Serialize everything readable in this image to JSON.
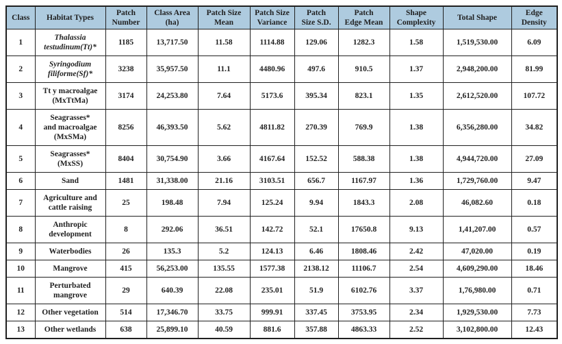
{
  "colors": {
    "header_bg": "#AECBDF",
    "border": "#1F1F1F",
    "text": "#1F1F1F",
    "page_bg": "#FFFFFF"
  },
  "table": {
    "columns": [
      {
        "key": "class_id",
        "label": "Class"
      },
      {
        "key": "habitat",
        "label": "Habitat Types"
      },
      {
        "key": "patch_number",
        "label": "Patch\nNumber"
      },
      {
        "key": "class_area_ha",
        "label": "Class Area\n(ha)"
      },
      {
        "key": "patch_size_mean",
        "label": "Patch Size\nMean"
      },
      {
        "key": "patch_size_variance",
        "label": "Patch Size\nVariance"
      },
      {
        "key": "patch_size_sd",
        "label": "Patch\nSize S.D."
      },
      {
        "key": "patch_edge_mean",
        "label": "Patch\nEdge Mean"
      },
      {
        "key": "shape_complexity",
        "label": "Shape\nComplexity"
      },
      {
        "key": "total_shape",
        "label": "Total Shape"
      },
      {
        "key": "edge_density",
        "label": "Edge\nDensity"
      }
    ],
    "rows": [
      {
        "class_id": "1",
        "habitat": "Thalassia\ntestudinum(Tt)*",
        "habitat_italic": true,
        "patch_number": "1185",
        "class_area_ha": "13,717.50",
        "patch_size_mean": "11.58",
        "patch_size_variance": "1114.88",
        "patch_size_sd": "129.06",
        "patch_edge_mean": "1282.3",
        "shape_complexity": "1.58",
        "total_shape": "1,519,530.00",
        "edge_density": "6.09"
      },
      {
        "class_id": "2",
        "habitat": "Syringodium\nfiliforme(Sf)*",
        "habitat_italic": true,
        "patch_number": "3238",
        "class_area_ha": "35,957.50",
        "patch_size_mean": "11.1",
        "patch_size_variance": "4480.96",
        "patch_size_sd": "497.6",
        "patch_edge_mean": "910.5",
        "shape_complexity": "1.37",
        "total_shape": "2,948,200.00",
        "edge_density": "81.99"
      },
      {
        "class_id": "3",
        "habitat": "Tt y macroalgae\n(MxTtMa)",
        "habitat_italic": false,
        "patch_number": "3174",
        "class_area_ha": "24,253.80",
        "patch_size_mean": "7.64",
        "patch_size_variance": "5173.6",
        "patch_size_sd": "395.34",
        "patch_edge_mean": "823.1",
        "shape_complexity": "1.35",
        "total_shape": "2,612,520.00",
        "edge_density": "107.72"
      },
      {
        "class_id": "4",
        "habitat": "Seagrasses*\nand macroalgae\n(MxSMa)",
        "habitat_italic": false,
        "patch_number": "8256",
        "class_area_ha": "46,393.50",
        "patch_size_mean": "5.62",
        "patch_size_variance": "4811.82",
        "patch_size_sd": "270.39",
        "patch_edge_mean": "769.9",
        "shape_complexity": "1.38",
        "total_shape": "6,356,280.00",
        "edge_density": "34.82"
      },
      {
        "class_id": "5",
        "habitat": "Seagrasses*\n(MxSS)",
        "habitat_italic": false,
        "patch_number": "8404",
        "class_area_ha": "30,754.90",
        "patch_size_mean": "3.66",
        "patch_size_variance": "4167.64",
        "patch_size_sd": "152.52",
        "patch_edge_mean": "588.38",
        "shape_complexity": "1.38",
        "total_shape": "4,944,720.00",
        "edge_density": "27.09"
      },
      {
        "class_id": "6",
        "habitat": "Sand",
        "habitat_italic": false,
        "patch_number": "1481",
        "class_area_ha": "31,338.00",
        "patch_size_mean": "21.16",
        "patch_size_variance": "3103.51",
        "patch_size_sd": "656.7",
        "patch_edge_mean": "1167.97",
        "shape_complexity": "1.36",
        "total_shape": "1,729,760.00",
        "edge_density": "9.47"
      },
      {
        "class_id": "7",
        "habitat": "Agriculture and\ncattle raising",
        "habitat_italic": false,
        "patch_number": "25",
        "class_area_ha": "198.48",
        "patch_size_mean": "7.94",
        "patch_size_variance": "125.24",
        "patch_size_sd": "9.94",
        "patch_edge_mean": "1843.3",
        "shape_complexity": "2.08",
        "total_shape": "46,082.60",
        "edge_density": "0.18"
      },
      {
        "class_id": "8",
        "habitat": "Anthropic\ndevelopment",
        "habitat_italic": false,
        "patch_number": "8",
        "class_area_ha": "292.06",
        "patch_size_mean": "36.51",
        "patch_size_variance": "142.72",
        "patch_size_sd": "52.1",
        "patch_edge_mean": "17650.8",
        "shape_complexity": "9.13",
        "total_shape": "1,41,207.00",
        "edge_density": "0.57"
      },
      {
        "class_id": "9",
        "habitat": "Waterbodies",
        "habitat_italic": false,
        "patch_number": "26",
        "class_area_ha": "135.3",
        "patch_size_mean": "5.2",
        "patch_size_variance": "124.13",
        "patch_size_sd": "6.46",
        "patch_edge_mean": "1808.46",
        "shape_complexity": "2.42",
        "total_shape": "47,020.00",
        "edge_density": "0.19"
      },
      {
        "class_id": "10",
        "habitat": "Mangrove",
        "habitat_italic": false,
        "patch_number": "415",
        "class_area_ha": "56,253.00",
        "patch_size_mean": "135.55",
        "patch_size_variance": "1577.38",
        "patch_size_sd": "2138.12",
        "patch_edge_mean": "11106.7",
        "shape_complexity": "2.54",
        "total_shape": "4,609,290.00",
        "edge_density": "18.46"
      },
      {
        "class_id": "11",
        "habitat": "Perturbated\nmangrove",
        "habitat_italic": false,
        "patch_number": "29",
        "class_area_ha": "640.39",
        "patch_size_mean": "22.08",
        "patch_size_variance": "235.01",
        "patch_size_sd": "51.9",
        "patch_edge_mean": "6102.76",
        "shape_complexity": "3.37",
        "total_shape": "1,76,980.00",
        "edge_density": "0.71"
      },
      {
        "class_id": "12",
        "habitat": "Other vegetation",
        "habitat_italic": false,
        "patch_number": "514",
        "class_area_ha": "17,346.70",
        "patch_size_mean": "33.75",
        "patch_size_variance": "999.91",
        "patch_size_sd": "337.45",
        "patch_edge_mean": "3753.95",
        "shape_complexity": "2.34",
        "total_shape": "1,929,530.00",
        "edge_density": "7.73"
      },
      {
        "class_id": "13",
        "habitat": "Other wetlands",
        "habitat_italic": false,
        "patch_number": "638",
        "class_area_ha": "25,899.10",
        "patch_size_mean": "40.59",
        "patch_size_variance": "881.6",
        "patch_size_sd": "357.88",
        "patch_edge_mean": "4863.33",
        "shape_complexity": "2.52",
        "total_shape": "3,102,800.00",
        "edge_density": "12.43"
      }
    ]
  }
}
